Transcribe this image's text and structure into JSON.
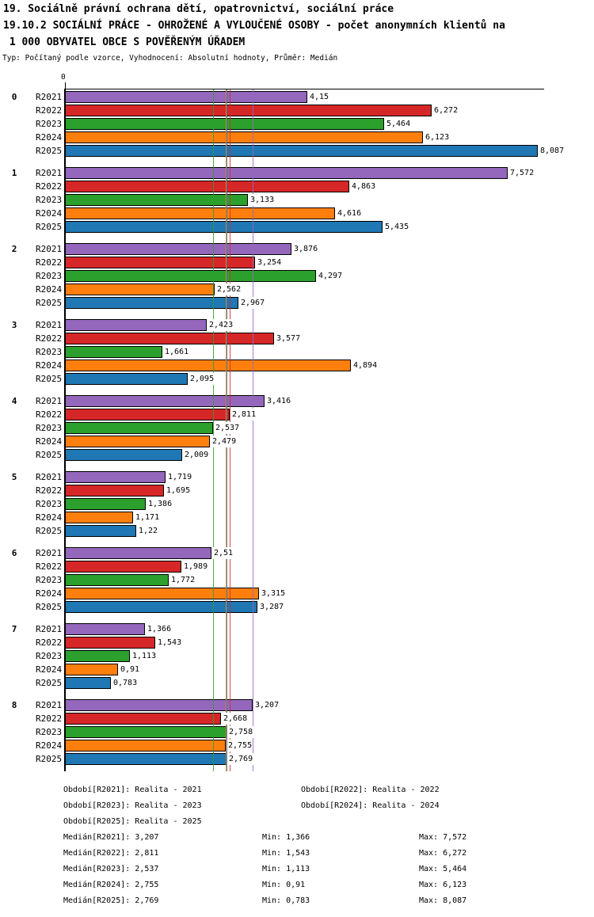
{
  "title": {
    "line1": "19. Sociálně právní ochrana dětí, opatrovnictví, sociální práce",
    "line2": "19.10.2 SOCIÁLNÍ PRÁCE - OHROŽENÉ A VYLOUČENÉ OSOBY - počet anonymních klientů na",
    "line3": " 1 000 OBYVATEL OBCE S POVĚŘENÝM ÚŘADEM",
    "meta": "Typ: Počítaný podle vzorce, Vyhodnocení: Absolutní hodnoty, Průměr: Medián"
  },
  "chart_data": {
    "type": "bar",
    "orientation": "horizontal",
    "x_axis": {
      "origin_tick_label": "0",
      "xlim": [
        0,
        8.2
      ],
      "grid": false
    },
    "categories": [
      "0",
      "1",
      "2",
      "3",
      "4",
      "5",
      "6",
      "7",
      "8"
    ],
    "series": [
      {
        "name": "R2021",
        "color": "#9467bd",
        "values": [
          4.15,
          7.572,
          3.876,
          2.423,
          3.416,
          1.719,
          2.51,
          1.366,
          3.207
        ],
        "median": 3.207,
        "min": 1.366,
        "max": 7.572,
        "period_text": "Období[R2021]: Realita - 2021",
        "median_text": "Medián[R2021]: 3,207",
        "min_text": "Min: 1,366",
        "max_text": "Max: 7,572"
      },
      {
        "name": "R2022",
        "color": "#d62728",
        "values": [
          6.272,
          4.863,
          3.254,
          3.577,
          2.811,
          1.695,
          1.989,
          1.543,
          2.668
        ],
        "median": 2.811,
        "min": 1.543,
        "max": 6.272,
        "period_text": "Období[R2022]: Realita - 2022",
        "median_text": "Medián[R2022]: 2,811",
        "min_text": "Min: 1,543",
        "max_text": "Max: 6,272"
      },
      {
        "name": "R2023",
        "color": "#2ca02c",
        "values": [
          5.464,
          3.133,
          4.297,
          1.661,
          2.537,
          1.386,
          1.772,
          1.113,
          2.758
        ],
        "median": 2.537,
        "min": 1.113,
        "max": 5.464,
        "period_text": "Období[R2023]: Realita - 2023",
        "median_text": "Medián[R2023]: 2,537",
        "min_text": "Min: 1,113",
        "max_text": "Max: 5,464"
      },
      {
        "name": "R2024",
        "color": "#ff7f0e",
        "values": [
          6.123,
          4.616,
          2.562,
          4.894,
          2.479,
          1.171,
          3.315,
          0.91,
          2.755
        ],
        "median": 2.755,
        "min": 0.91,
        "max": 6.123,
        "period_text": "Období[R2024]: Realita - 2024",
        "median_text": "Medián[R2024]: 2,755",
        "min_text": "Min: 0,91",
        "max_text": "Max: 6,123"
      },
      {
        "name": "R2025",
        "color": "#1f77b4",
        "values": [
          8.087,
          5.435,
          2.967,
          2.095,
          2.009,
          1.22,
          3.287,
          0.783,
          2.769
        ],
        "median": 2.769,
        "min": 0.783,
        "max": 8.087,
        "period_text": "Období[R2025]: Realita - 2025",
        "median_text": "Medián[R2025]: 2,769",
        "min_text": "Min: 0,783",
        "max_text": "Max: 8,087"
      }
    ],
    "legend_position": "bottom",
    "value_label_decimal_separator": ","
  }
}
